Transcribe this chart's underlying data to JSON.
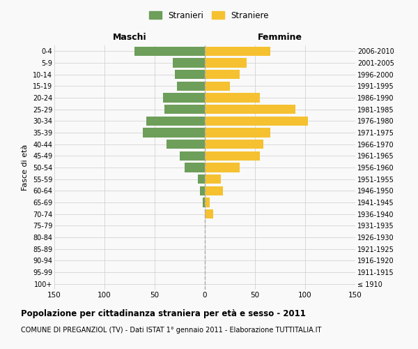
{
  "age_groups": [
    "100+",
    "95-99",
    "90-94",
    "85-89",
    "80-84",
    "75-79",
    "70-74",
    "65-69",
    "60-64",
    "55-59",
    "50-54",
    "45-49",
    "40-44",
    "35-39",
    "30-34",
    "25-29",
    "20-24",
    "15-19",
    "10-14",
    "5-9",
    "0-4"
  ],
  "birth_years": [
    "≤ 1910",
    "1911-1915",
    "1916-1920",
    "1921-1925",
    "1926-1930",
    "1931-1935",
    "1936-1940",
    "1941-1945",
    "1946-1950",
    "1951-1955",
    "1956-1960",
    "1961-1965",
    "1966-1970",
    "1971-1975",
    "1976-1980",
    "1981-1985",
    "1986-1990",
    "1991-1995",
    "1996-2000",
    "2001-2005",
    "2006-2010"
  ],
  "males": [
    0,
    0,
    0,
    0,
    0,
    0,
    0,
    2,
    5,
    7,
    20,
    25,
    38,
    62,
    58,
    40,
    42,
    28,
    30,
    32,
    70
  ],
  "females": [
    0,
    0,
    0,
    0,
    0,
    0,
    8,
    5,
    18,
    16,
    35,
    55,
    58,
    65,
    103,
    90,
    55,
    25,
    35,
    42,
    65
  ],
  "male_color": "#6d9e5a",
  "female_color": "#f5c130",
  "background_color": "#f9f9f9",
  "grid_color": "#cccccc",
  "dashed_line_color": "#aaaaaa",
  "title": "Popolazione per cittadinanza straniera per età e sesso - 2011",
  "subtitle": "COMUNE DI PREGANZIOL (TV) - Dati ISTAT 1° gennaio 2011 - Elaborazione TUTTITALIA.IT",
  "xlabel_left": "Maschi",
  "xlabel_right": "Femmine",
  "ylabel_left": "Fasce di età",
  "legend_male": "Stranieri",
  "legend_female": "Straniere",
  "xlim": 150,
  "bar_height": 0.8
}
